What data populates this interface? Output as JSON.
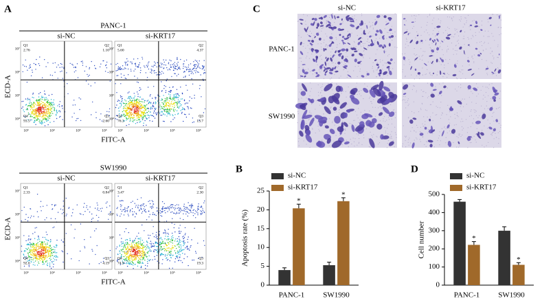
{
  "flow": {
    "label": "A",
    "y_label": "ECD-A",
    "x_label": "FITC-A",
    "x_ticks": [
      "10³",
      "10⁴",
      "10⁵",
      "10⁶"
    ],
    "y_ticks": [
      "10⁴",
      "10⁵",
      "10⁶",
      "10⁷"
    ],
    "groups": [
      {
        "title": "PANC-1",
        "conditions": [
          {
            "name": "si-NC",
            "quadrants": [
              {
                "name": "Q1",
                "percent": "2.76"
              },
              {
                "name": "Q2",
                "percent": "1.10"
              },
              {
                "name": "Q3",
                "percent": "2.60"
              },
              {
                "name": "Q4",
                "percent": "93.5"
              }
            ]
          },
          {
            "name": "si-KRT17",
            "quadrants": [
              {
                "name": "Q1",
                "percent": "5.60"
              },
              {
                "name": "Q2",
                "percent": "4.37"
              },
              {
                "name": "Q3",
                "percent": "13.7"
              },
              {
                "name": "Q4",
                "percent": "76.3"
              }
            ]
          }
        ]
      },
      {
        "title": "SW1990",
        "conditions": [
          {
            "name": "si-NC",
            "quadrants": [
              {
                "name": "Q1",
                "percent": "2.33"
              },
              {
                "name": "Q2",
                "percent": "0.84"
              },
              {
                "name": "Q3",
                "percent": "4.19"
              },
              {
                "name": "Q4",
                "percent": "92.6"
              }
            ]
          },
          {
            "name": "si-KRT17",
            "quadrants": [
              {
                "name": "Q1",
                "percent": "3.47"
              },
              {
                "name": "Q2",
                "percent": "2.30"
              },
              {
                "name": "Q3",
                "percent": "19.3"
              },
              {
                "name": "Q4",
                "percent": "74.9"
              }
            ]
          }
        ]
      }
    ]
  },
  "images": {
    "label": "C",
    "columns": [
      "si-NC",
      "si-KRT17"
    ],
    "rows": [
      "PANC-1",
      "SW1990"
    ]
  },
  "chart_data": [
    {
      "type": "bar",
      "panel": "B",
      "y_label": "Apoptosis rate (%)",
      "categories": [
        "PANC-1",
        "SW1990"
      ],
      "series": [
        {
          "name": "si-NC",
          "color": "#333333",
          "values": [
            4,
            5.3
          ],
          "errors": [
            0.6,
            0.8
          ]
        },
        {
          "name": "si-KRT17",
          "color": "#a0692a",
          "values": [
            20.4,
            22.3
          ],
          "errors": [
            1.1,
            0.9
          ],
          "significance": [
            "*",
            "*"
          ]
        }
      ],
      "ylim": [
        0,
        25
      ],
      "yticks": [
        0,
        5,
        10,
        15,
        20,
        25
      ]
    },
    {
      "type": "bar",
      "panel": "D",
      "y_label": "Cell number",
      "categories": [
        "PANC-1",
        "SW1990"
      ],
      "series": [
        {
          "name": "si-NC",
          "color": "#333333",
          "values": [
            460,
            300
          ],
          "errors": [
            12,
            22
          ]
        },
        {
          "name": "si-KRT17",
          "color": "#a0692a",
          "values": [
            222,
            112
          ],
          "errors": [
            18,
            12
          ],
          "significance": [
            "*",
            "*"
          ]
        }
      ],
      "ylim": [
        0,
        500
      ],
      "yticks": [
        0,
        100,
        200,
        300,
        400,
        500
      ]
    }
  ]
}
